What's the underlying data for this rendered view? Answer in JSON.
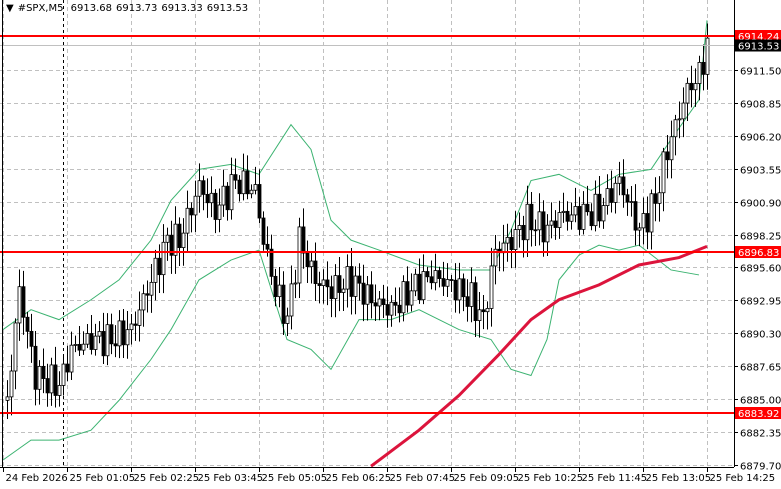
{
  "header": {
    "symbol": "#SPX,M5",
    "open": "6913.68",
    "high": "6913.73",
    "low": "6913.33",
    "close": "6913.53"
  },
  "chart_data": {
    "type": "candlestick",
    "symbol": "#SPX",
    "timeframe": "M5",
    "ylim": [
      6879.7,
      6916.5
    ],
    "grid": true,
    "price_ticks": [
      "6911.50",
      "6908.85",
      "6906.20",
      "6903.55",
      "6900.90",
      "6898.25",
      "6895.60",
      "6892.95",
      "6890.30",
      "6887.65",
      "6885.00",
      "6882.35",
      "6879.70"
    ],
    "time_ticks": [
      {
        "label": "24 Feb 2026",
        "t": "23:45"
      },
      {
        "label": "25 Feb 01:05",
        "t": "01:05"
      },
      {
        "label": "25 Feb 02:25",
        "t": "02:25"
      },
      {
        "label": "25 Feb 03:45",
        "t": "03:45"
      },
      {
        "label": "25 Feb 05:05",
        "t": "05:05"
      },
      {
        "label": "25 Feb 06:25",
        "t": "06:25"
      },
      {
        "label": "25 Feb 07:45",
        "t": "07:45"
      },
      {
        "label": "25 Feb 09:05",
        "t": "09:05"
      },
      {
        "label": "25 Feb 10:25",
        "t": "10:25"
      },
      {
        "label": "25 Feb 11:45",
        "t": "11:45"
      },
      {
        "label": "25 Feb 13:05",
        "t": "13:05"
      },
      {
        "label": "25 Feb 14:25",
        "t": "14:25"
      }
    ],
    "period_separator": "01:00",
    "price_path": [
      [
        "23:50",
        6884.9
      ],
      [
        "00:05",
        6893.8
      ],
      [
        "00:25",
        6886.9
      ],
      [
        "00:55",
        6886.1
      ],
      [
        "01:10",
        6889.0
      ],
      [
        "01:35",
        6889.8
      ],
      [
        "02:00",
        6889.8
      ],
      [
        "02:25",
        6890.6
      ],
      [
        "02:45",
        6893.8
      ],
      [
        "03:10",
        6897.8
      ],
      [
        "03:25",
        6897.8
      ],
      [
        "03:50",
        6902.2
      ],
      [
        "04:10",
        6900.2
      ],
      [
        "04:35",
        6902.6
      ],
      [
        "05:00",
        6901.8
      ],
      [
        "05:10",
        6897.8
      ],
      [
        "05:25",
        6893.8
      ],
      [
        "05:40",
        6891.4
      ],
      [
        "05:55",
        6897.8
      ],
      [
        "06:15",
        6894.6
      ],
      [
        "06:35",
        6893.8
      ],
      [
        "07:00",
        6894.6
      ],
      [
        "07:25",
        6893.0
      ],
      [
        "07:50",
        6892.2
      ],
      [
        "08:15",
        6893.8
      ],
      [
        "08:40",
        6895.0
      ],
      [
        "09:05",
        6894.2
      ],
      [
        "09:30",
        6893.0
      ],
      [
        "09:45",
        6891.4
      ],
      [
        "10:00",
        6897.0
      ],
      [
        "10:20",
        6897.8
      ],
      [
        "10:40",
        6899.4
      ],
      [
        "11:05",
        6898.6
      ],
      [
        "11:20",
        6899.8
      ],
      [
        "11:45",
        6899.8
      ],
      [
        "12:10",
        6900.2
      ],
      [
        "12:35",
        6902.6
      ],
      [
        "13:00",
        6898.6
      ],
      [
        "13:20",
        6901.0
      ],
      [
        "13:35",
        6905.1
      ],
      [
        "14:00",
        6909.9
      ],
      [
        "14:15",
        6911.1
      ],
      [
        "14:25",
        6913.53
      ]
    ],
    "bollinger_upper": [
      [
        "23:45",
        6890.6
      ],
      [
        "00:20",
        6892.2
      ],
      [
        "00:55",
        6891.4
      ],
      [
        "01:35",
        6893.0
      ],
      [
        "02:10",
        6894.6
      ],
      [
        "02:50",
        6897.8
      ],
      [
        "03:15",
        6901.0
      ],
      [
        "03:50",
        6903.5
      ],
      [
        "04:30",
        6903.9
      ],
      [
        "05:05",
        6903.1
      ],
      [
        "05:45",
        6907.1
      ],
      [
        "06:10",
        6905.1
      ],
      [
        "06:35",
        6899.4
      ],
      [
        "07:00",
        6897.8
      ],
      [
        "07:35",
        6897.0
      ],
      [
        "08:25",
        6895.8
      ],
      [
        "09:15",
        6895.4
      ],
      [
        "09:55",
        6895.4
      ],
      [
        "10:20",
        6898.6
      ],
      [
        "10:45",
        6902.6
      ],
      [
        "11:20",
        6903.1
      ],
      [
        "12:00",
        6901.8
      ],
      [
        "12:35",
        6903.1
      ],
      [
        "13:15",
        6903.5
      ],
      [
        "13:40",
        6905.9
      ],
      [
        "14:15",
        6909.1
      ],
      [
        "14:25",
        6915.5
      ]
    ],
    "bollinger_lower": [
      [
        "23:45",
        6880.1
      ],
      [
        "00:20",
        6881.7
      ],
      [
        "00:55",
        6881.7
      ],
      [
        "01:35",
        6882.5
      ],
      [
        "02:10",
        6884.9
      ],
      [
        "02:50",
        6888.2
      ],
      [
        "03:15",
        6890.6
      ],
      [
        "03:50",
        6894.6
      ],
      [
        "04:30",
        6896.2
      ],
      [
        "05:05",
        6897.0
      ],
      [
        "05:40",
        6889.8
      ],
      [
        "06:10",
        6889.0
      ],
      [
        "06:35",
        6887.4
      ],
      [
        "07:10",
        6891.4
      ],
      [
        "07:50",
        6891.4
      ],
      [
        "08:25",
        6892.2
      ],
      [
        "09:15",
        6890.6
      ],
      [
        "09:55",
        6889.8
      ],
      [
        "10:20",
        6887.4
      ],
      [
        "10:45",
        6886.9
      ],
      [
        "11:05",
        6889.8
      ],
      [
        "11:20",
        6894.6
      ],
      [
        "11:45",
        6896.6
      ],
      [
        "12:10",
        6897.4
      ],
      [
        "12:35",
        6897.0
      ],
      [
        "13:00",
        6897.4
      ],
      [
        "13:40",
        6895.4
      ],
      [
        "14:15",
        6895.0
      ]
    ],
    "moving_average": [
      [
        "07:25",
        6879.6
      ],
      [
        "08:25",
        6882.5
      ],
      [
        "09:15",
        6885.3
      ],
      [
        "10:05",
        6888.6
      ],
      [
        "10:45",
        6891.4
      ],
      [
        "11:20",
        6893.0
      ],
      [
        "12:10",
        6894.2
      ],
      [
        "13:00",
        6895.8
      ],
      [
        "13:50",
        6896.4
      ],
      [
        "14:25",
        6897.3
      ]
    ],
    "levels": [
      {
        "price": "6914.24",
        "color": "#ff0000"
      },
      {
        "price": "6896.83",
        "color": "#ff0000"
      },
      {
        "price": "6883.92",
        "color": "#ff0000"
      }
    ],
    "current_price": {
      "price": "6913.53",
      "color": "#000000"
    },
    "colors": {
      "candles": "#000000",
      "bands": "#3cb371",
      "ma": "#dc143c",
      "grid": "#c0c0c0"
    }
  }
}
